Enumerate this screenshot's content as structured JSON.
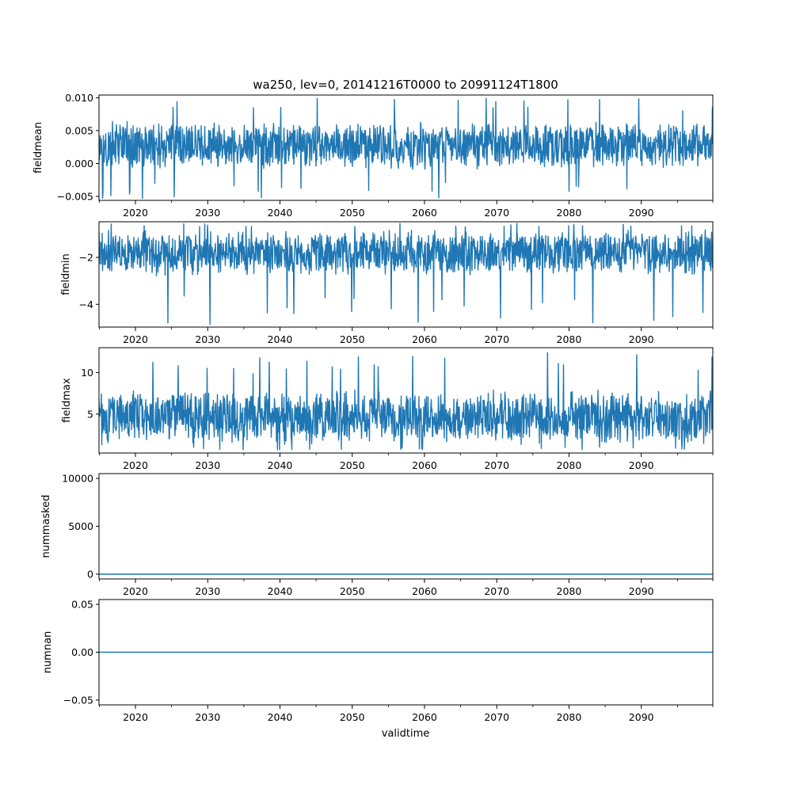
{
  "chart_data": {
    "type": "line",
    "title": "wa250, lev=0, 20141216T0000 to 20991124T1800",
    "xlabel": "validtime",
    "xlim": [
      "2014-12-16T00:00",
      "2099-11-24T18:00"
    ],
    "x_ticks": [
      "2020",
      "2030",
      "2040",
      "2050",
      "2060",
      "2070",
      "2080",
      "2090"
    ],
    "line_color": "#1f77b4",
    "grid": false,
    "panels": [
      {
        "ylabel": "fieldmean",
        "ylim": [
          -0.0056,
          0.0104
        ],
        "yticks": [
          -0.005,
          0.0,
          0.005,
          0.01
        ],
        "ytick_labels": [
          "−0.005",
          "0.000",
          "0.005",
          "0.010"
        ],
        "series": {
          "kind": "noise",
          "base_low": -0.001,
          "base_high": 0.0065,
          "spike_low": -0.0053,
          "spike_high": 0.0099,
          "min": -0.0053,
          "max": 0.0099
        }
      },
      {
        "ylabel": "fieldmin",
        "ylim": [
          -4.97,
          -0.48
        ],
        "yticks": [
          -4,
          -2
        ],
        "ytick_labels": [
          "−4",
          "−2"
        ],
        "series": {
          "kind": "noise",
          "base_low": -2.8,
          "base_high": -0.8,
          "spike_low": -4.85,
          "spike_high": -0.55,
          "min": -4.85,
          "max": -0.55
        }
      },
      {
        "ylabel": "fieldmax",
        "ylim": [
          0.3,
          13.0
        ],
        "yticks": [
          5,
          10
        ],
        "ytick_labels": [
          "5",
          "10"
        ],
        "series": {
          "kind": "noise",
          "base_low": 1.2,
          "base_high": 8.0,
          "spike_low": 0.7,
          "spike_high": 12.4,
          "min": 0.7,
          "max": 12.4
        }
      },
      {
        "ylabel": "nummasked",
        "ylim": [
          -500,
          10500
        ],
        "yticks": [
          0,
          5000,
          10000
        ],
        "ytick_labels": [
          "0",
          "5000",
          "10000"
        ],
        "series": {
          "kind": "constant",
          "value": 0
        }
      },
      {
        "ylabel": "numnan",
        "ylim": [
          -0.055,
          0.055
        ],
        "yticks": [
          -0.05,
          0.0,
          0.05
        ],
        "ytick_labels": [
          "−0.05",
          "0.00",
          "0.05"
        ],
        "series": {
          "kind": "constant",
          "value": 0
        }
      }
    ]
  }
}
